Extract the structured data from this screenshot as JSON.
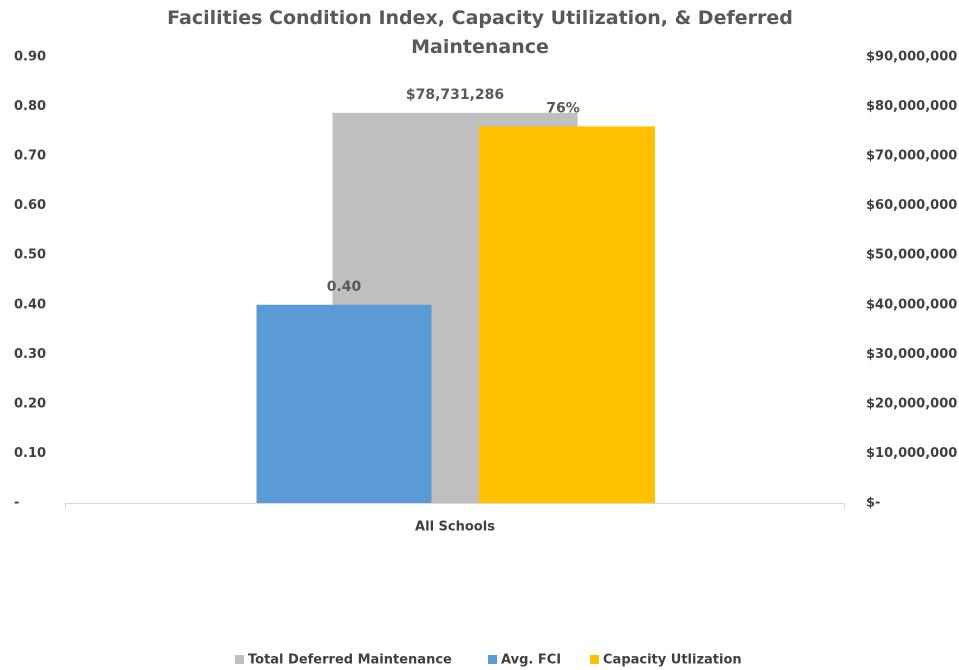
{
  "chart_data": {
    "type": "bar",
    "title": "Facilities Condition Index, Capacity Utilization, & Deferred Maintenance",
    "categories": [
      "All Schools"
    ],
    "series": [
      {
        "name": "Total Deferred Maintenance",
        "color": "#bfbfbf",
        "axis": "y2",
        "values": [
          78731286
        ],
        "value_labels": [
          "$78,731,286"
        ]
      },
      {
        "name": "Avg. FCI",
        "color": "#5b9bd5",
        "values": [
          0.4
        ],
        "value_labels": [
          "0.40"
        ]
      },
      {
        "name": "Capacity Utlization",
        "color": "#ffc000",
        "values": [
          0.76
        ],
        "value_labels": [
          "76%"
        ]
      }
    ],
    "ylim": [
      0,
      0.9
    ],
    "yticks": [
      {
        "value": 0,
        "label": "-"
      },
      {
        "value": 0.1,
        "label": "0.10"
      },
      {
        "value": 0.2,
        "label": "0.20"
      },
      {
        "value": 0.3,
        "label": "0.30"
      },
      {
        "value": 0.4,
        "label": "0.40"
      },
      {
        "value": 0.5,
        "label": "0.50"
      },
      {
        "value": 0.6,
        "label": "0.60"
      },
      {
        "value": 0.7,
        "label": "0.70"
      },
      {
        "value": 0.8,
        "label": "0.80"
      },
      {
        "value": 0.9,
        "label": "0.90"
      }
    ],
    "y2lim": [
      0,
      90000000
    ],
    "y2ticks": [
      {
        "value": 0,
        "label": "$-"
      },
      {
        "value": 10000000,
        "label": "$10,000,000"
      },
      {
        "value": 20000000,
        "label": "$20,000,000"
      },
      {
        "value": 30000000,
        "label": "$30,000,000"
      },
      {
        "value": 40000000,
        "label": "$40,000,000"
      },
      {
        "value": 50000000,
        "label": "$50,000,000"
      },
      {
        "value": 60000000,
        "label": "$60,000,000"
      },
      {
        "value": 70000000,
        "label": "$70,000,000"
      },
      {
        "value": 80000000,
        "label": "$80,000,000"
      },
      {
        "value": 90000000,
        "label": "$90,000,000"
      }
    ],
    "grid": false,
    "legend": "bottom"
  }
}
